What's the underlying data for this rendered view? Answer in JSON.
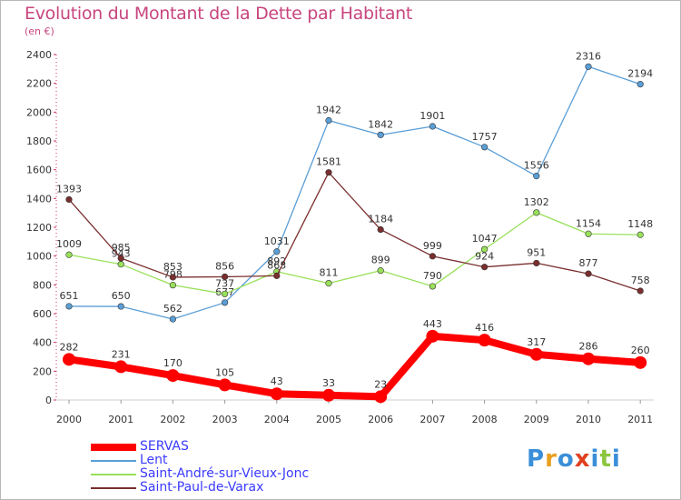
{
  "title": "Evolution du Montant de la Dette par Habitant",
  "unit_label": "(en €)",
  "logo_text": "Proxiti",
  "chart_data": {
    "type": "line",
    "x": [
      "2000",
      "2001",
      "2002",
      "2003",
      "2004",
      "2005",
      "2006",
      "2007",
      "2008",
      "2009",
      "2010",
      "2011"
    ],
    "ylim": [
      0,
      2400
    ],
    "yticks": [
      0,
      200,
      400,
      600,
      800,
      1000,
      1200,
      1400,
      1600,
      1800,
      2000,
      2200,
      2400
    ],
    "grid": false,
    "legend_position": "bottom-left",
    "series": [
      {
        "name": "SERVAS",
        "color": "#ff0000",
        "thick": true,
        "values": [
          282,
          231,
          170,
          105,
          43,
          33,
          23,
          443,
          416,
          317,
          286,
          260
        ]
      },
      {
        "name": "Lent",
        "color": "#5a9ed6",
        "thick": false,
        "values": [
          651,
          650,
          562,
          677,
          1031,
          1942,
          1842,
          1901,
          1757,
          1556,
          2316,
          2194
        ]
      },
      {
        "name": "Saint-André-sur-Vieux-Jonc",
        "color": "#99e05a",
        "thick": false,
        "values": [
          1009,
          943,
          798,
          737,
          892,
          811,
          899,
          790,
          1047,
          1302,
          1154,
          1148
        ]
      },
      {
        "name": "Saint-Paul-de-Varax",
        "color": "#7a2e2e",
        "thick": false,
        "values": [
          1393,
          985,
          853,
          856,
          863,
          1581,
          1184,
          999,
          924,
          951,
          877,
          758
        ]
      }
    ]
  }
}
